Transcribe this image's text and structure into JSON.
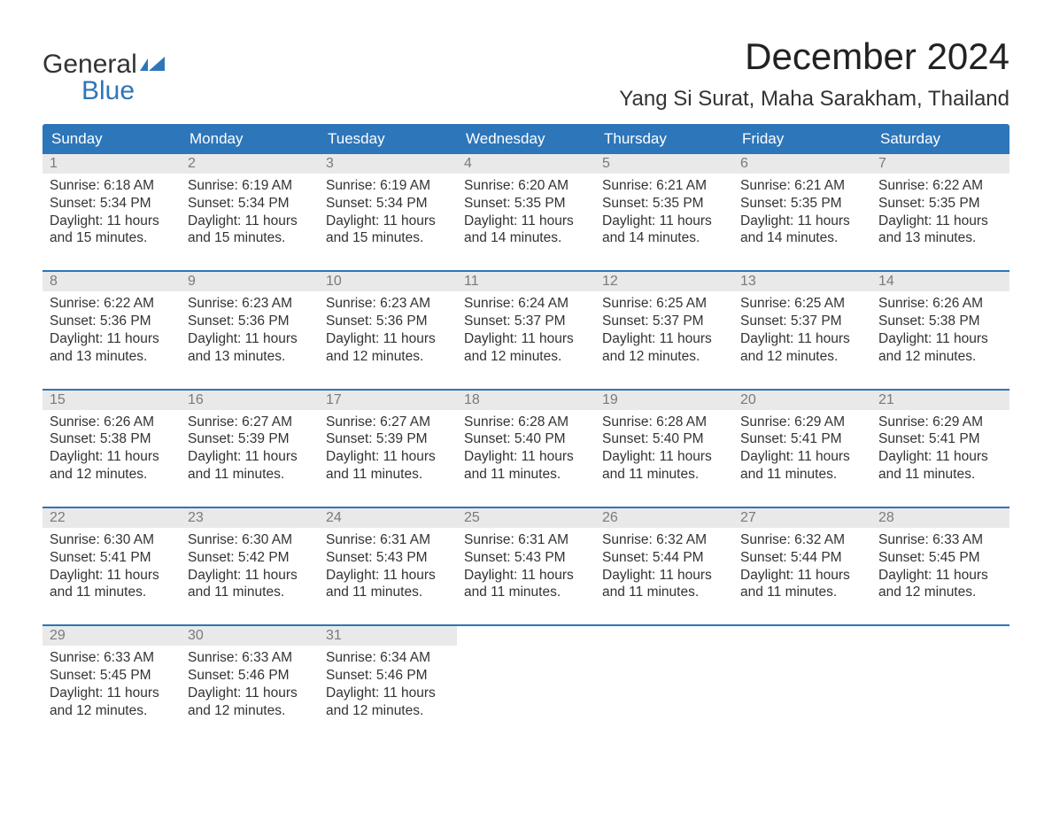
{
  "logo": {
    "line1": "General",
    "line2": "Blue",
    "icon_color": "#2d76ba"
  },
  "title": "December 2024",
  "location": "Yang Si Surat, Maha Sarakham, Thailand",
  "colors": {
    "header_bg": "#2d76ba",
    "header_text": "#ffffff",
    "daynum_bg": "#e9e9e9",
    "daynum_text": "#7a7a7a",
    "week_border": "#2d76ba",
    "body_text": "#333333",
    "page_bg": "#ffffff"
  },
  "day_headers": [
    "Sunday",
    "Monday",
    "Tuesday",
    "Wednesday",
    "Thursday",
    "Friday",
    "Saturday"
  ],
  "weeks": [
    [
      {
        "n": "1",
        "sunrise": "6:18 AM",
        "sunset": "5:34 PM",
        "daylight": "11 hours and 15 minutes."
      },
      {
        "n": "2",
        "sunrise": "6:19 AM",
        "sunset": "5:34 PM",
        "daylight": "11 hours and 15 minutes."
      },
      {
        "n": "3",
        "sunrise": "6:19 AM",
        "sunset": "5:34 PM",
        "daylight": "11 hours and 15 minutes."
      },
      {
        "n": "4",
        "sunrise": "6:20 AM",
        "sunset": "5:35 PM",
        "daylight": "11 hours and 14 minutes."
      },
      {
        "n": "5",
        "sunrise": "6:21 AM",
        "sunset": "5:35 PM",
        "daylight": "11 hours and 14 minutes."
      },
      {
        "n": "6",
        "sunrise": "6:21 AM",
        "sunset": "5:35 PM",
        "daylight": "11 hours and 14 minutes."
      },
      {
        "n": "7",
        "sunrise": "6:22 AM",
        "sunset": "5:35 PM",
        "daylight": "11 hours and 13 minutes."
      }
    ],
    [
      {
        "n": "8",
        "sunrise": "6:22 AM",
        "sunset": "5:36 PM",
        "daylight": "11 hours and 13 minutes."
      },
      {
        "n": "9",
        "sunrise": "6:23 AM",
        "sunset": "5:36 PM",
        "daylight": "11 hours and 13 minutes."
      },
      {
        "n": "10",
        "sunrise": "6:23 AM",
        "sunset": "5:36 PM",
        "daylight": "11 hours and 12 minutes."
      },
      {
        "n": "11",
        "sunrise": "6:24 AM",
        "sunset": "5:37 PM",
        "daylight": "11 hours and 12 minutes."
      },
      {
        "n": "12",
        "sunrise": "6:25 AM",
        "sunset": "5:37 PM",
        "daylight": "11 hours and 12 minutes."
      },
      {
        "n": "13",
        "sunrise": "6:25 AM",
        "sunset": "5:37 PM",
        "daylight": "11 hours and 12 minutes."
      },
      {
        "n": "14",
        "sunrise": "6:26 AM",
        "sunset": "5:38 PM",
        "daylight": "11 hours and 12 minutes."
      }
    ],
    [
      {
        "n": "15",
        "sunrise": "6:26 AM",
        "sunset": "5:38 PM",
        "daylight": "11 hours and 12 minutes."
      },
      {
        "n": "16",
        "sunrise": "6:27 AM",
        "sunset": "5:39 PM",
        "daylight": "11 hours and 11 minutes."
      },
      {
        "n": "17",
        "sunrise": "6:27 AM",
        "sunset": "5:39 PM",
        "daylight": "11 hours and 11 minutes."
      },
      {
        "n": "18",
        "sunrise": "6:28 AM",
        "sunset": "5:40 PM",
        "daylight": "11 hours and 11 minutes."
      },
      {
        "n": "19",
        "sunrise": "6:28 AM",
        "sunset": "5:40 PM",
        "daylight": "11 hours and 11 minutes."
      },
      {
        "n": "20",
        "sunrise": "6:29 AM",
        "sunset": "5:41 PM",
        "daylight": "11 hours and 11 minutes."
      },
      {
        "n": "21",
        "sunrise": "6:29 AM",
        "sunset": "5:41 PM",
        "daylight": "11 hours and 11 minutes."
      }
    ],
    [
      {
        "n": "22",
        "sunrise": "6:30 AM",
        "sunset": "5:41 PM",
        "daylight": "11 hours and 11 minutes."
      },
      {
        "n": "23",
        "sunrise": "6:30 AM",
        "sunset": "5:42 PM",
        "daylight": "11 hours and 11 minutes."
      },
      {
        "n": "24",
        "sunrise": "6:31 AM",
        "sunset": "5:43 PM",
        "daylight": "11 hours and 11 minutes."
      },
      {
        "n": "25",
        "sunrise": "6:31 AM",
        "sunset": "5:43 PM",
        "daylight": "11 hours and 11 minutes."
      },
      {
        "n": "26",
        "sunrise": "6:32 AM",
        "sunset": "5:44 PM",
        "daylight": "11 hours and 11 minutes."
      },
      {
        "n": "27",
        "sunrise": "6:32 AM",
        "sunset": "5:44 PM",
        "daylight": "11 hours and 11 minutes."
      },
      {
        "n": "28",
        "sunrise": "6:33 AM",
        "sunset": "5:45 PM",
        "daylight": "11 hours and 12 minutes."
      }
    ],
    [
      {
        "n": "29",
        "sunrise": "6:33 AM",
        "sunset": "5:45 PM",
        "daylight": "11 hours and 12 minutes."
      },
      {
        "n": "30",
        "sunrise": "6:33 AM",
        "sunset": "5:46 PM",
        "daylight": "11 hours and 12 minutes."
      },
      {
        "n": "31",
        "sunrise": "6:34 AM",
        "sunset": "5:46 PM",
        "daylight": "11 hours and 12 minutes."
      },
      null,
      null,
      null,
      null
    ]
  ],
  "labels": {
    "sunrise": "Sunrise: ",
    "sunset": "Sunset: ",
    "daylight": "Daylight: "
  }
}
